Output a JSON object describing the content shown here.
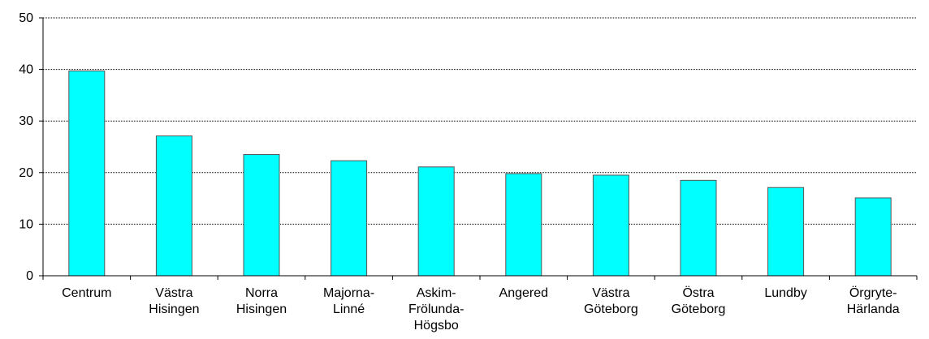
{
  "chart_data": {
    "type": "bar",
    "categories": [
      [
        "Centrum"
      ],
      [
        "Västra",
        "Hisingen"
      ],
      [
        "Norra",
        "Hisingen"
      ],
      [
        "Majorna-",
        "Linné"
      ],
      [
        "Askim-",
        "Frölunda-",
        "Högsbo"
      ],
      [
        "Angered"
      ],
      [
        "Västra",
        "Göteborg"
      ],
      [
        "Östra",
        "Göteborg"
      ],
      [
        "Lundby"
      ],
      [
        "Örgryte-",
        "Härlanda"
      ]
    ],
    "values": [
      39.7,
      27.1,
      23.5,
      22.3,
      21.1,
      19.8,
      19.5,
      18.5,
      17.1,
      15.1
    ],
    "ylim": [
      0,
      50
    ],
    "yticks": [
      "0",
      "10",
      "20",
      "30",
      "40",
      "50"
    ],
    "grid": true,
    "colors": {
      "bar_fill": "#00ffff",
      "bar_stroke": "#555555",
      "grid": "#000000",
      "axis": "#000000"
    }
  }
}
